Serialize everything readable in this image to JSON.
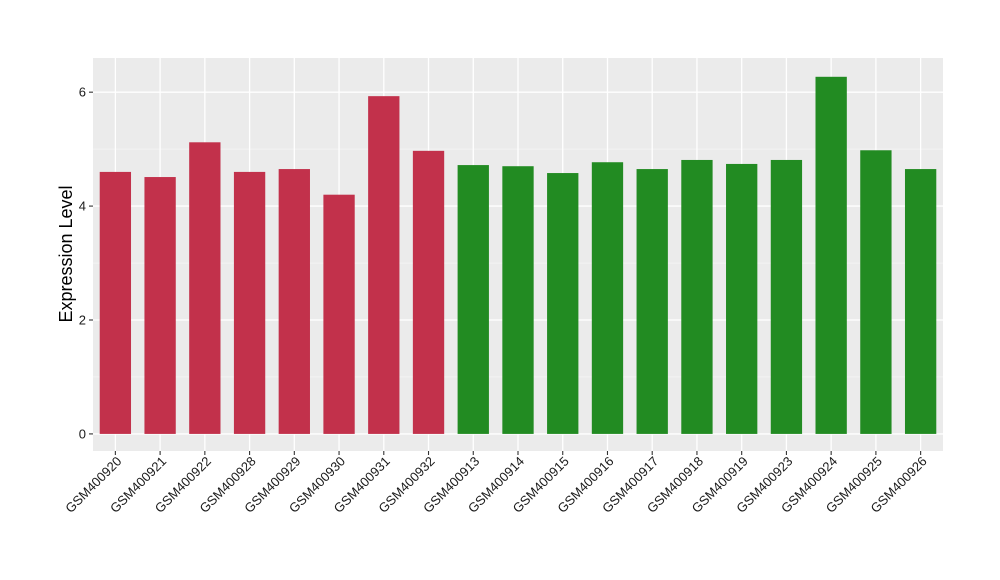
{
  "chart_data": {
    "type": "bar",
    "title": "",
    "xlabel": "",
    "ylabel": "Expression Level",
    "ylim": [
      -0.3,
      6.6
    ],
    "yticks": [
      0,
      2,
      4,
      6
    ],
    "grid": true,
    "legend": "none",
    "categories": [
      "GSM400920",
      "GSM400921",
      "GSM400922",
      "GSM400928",
      "GSM400929",
      "GSM400930",
      "GSM400931",
      "GSM400932",
      "GSM400913",
      "GSM400914",
      "GSM400915",
      "GSM400916",
      "GSM400917",
      "GSM400918",
      "GSM400919",
      "GSM400923",
      "GSM400924",
      "GSM400925",
      "GSM400926"
    ],
    "values": [
      4.6,
      4.51,
      5.12,
      4.6,
      4.65,
      4.2,
      5.93,
      4.97,
      4.72,
      4.7,
      4.58,
      4.77,
      4.65,
      4.81,
      4.74,
      4.81,
      6.27,
      4.98,
      4.65
    ],
    "groups": [
      "red",
      "red",
      "red",
      "red",
      "red",
      "red",
      "red",
      "red",
      "green",
      "green",
      "green",
      "green",
      "green",
      "green",
      "green",
      "green",
      "green",
      "green",
      "green"
    ],
    "colors": {
      "red": "#c2314b",
      "green": "#228b22",
      "panel": "#ebebeb",
      "grid_major": "#ffffff",
      "grid_minor": "#f5f5f5",
      "tick": "#333333"
    }
  }
}
